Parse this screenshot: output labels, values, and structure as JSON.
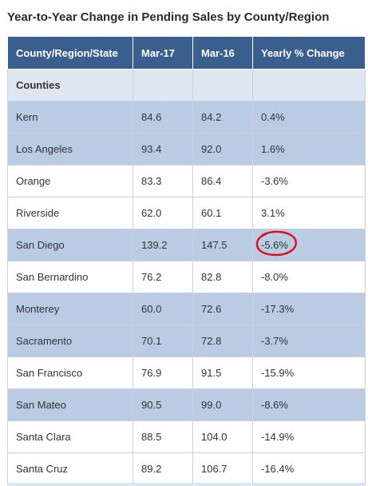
{
  "title": "Year-to-Year Change in Pending Sales by County/Region",
  "headers": [
    "County/Region/State",
    "Mar-17",
    "Mar-16",
    "Yearly % Change"
  ],
  "section_label": "Counties",
  "rows": [
    {
      "name": "Kern",
      "mar17": "84.6",
      "mar16": "84.2",
      "change": "0.4%"
    },
    {
      "name": "Los Angeles",
      "mar17": "93.4",
      "mar16": "92.0",
      "change": "1.6%"
    },
    {
      "name": "Orange",
      "mar17": "83.3",
      "mar16": "86.4",
      "change": "-3.6%"
    },
    {
      "name": "Riverside",
      "mar17": "62.0",
      "mar16": "60.1",
      "change": "3.1%"
    },
    {
      "name": "San Diego",
      "mar17": "139.2",
      "mar16": "147.5",
      "change": "-5.6%"
    },
    {
      "name": "San Bernardino",
      "mar17": "76.2",
      "mar16": "82.8",
      "change": "-8.0%"
    },
    {
      "name": "Monterey",
      "mar17": "60.0",
      "mar16": "72.6",
      "change": "-17.3%"
    },
    {
      "name": "Sacramento",
      "mar17": "70.1",
      "mar16": "72.8",
      "change": "-3.7%"
    },
    {
      "name": "San Francisco",
      "mar17": "76.9",
      "mar16": "91.5",
      "change": "-15.9%"
    },
    {
      "name": "San Mateo",
      "mar17": "90.5",
      "mar16": "99.0",
      "change": "-8.6%"
    },
    {
      "name": "Santa Clara",
      "mar17": "88.5",
      "mar16": "104.0",
      "change": "-14.9%"
    },
    {
      "name": "Santa Cruz",
      "mar17": "89.2",
      "mar16": "106.7",
      "change": "-16.4%"
    }
  ],
  "annotation_color": "#d9101a"
}
